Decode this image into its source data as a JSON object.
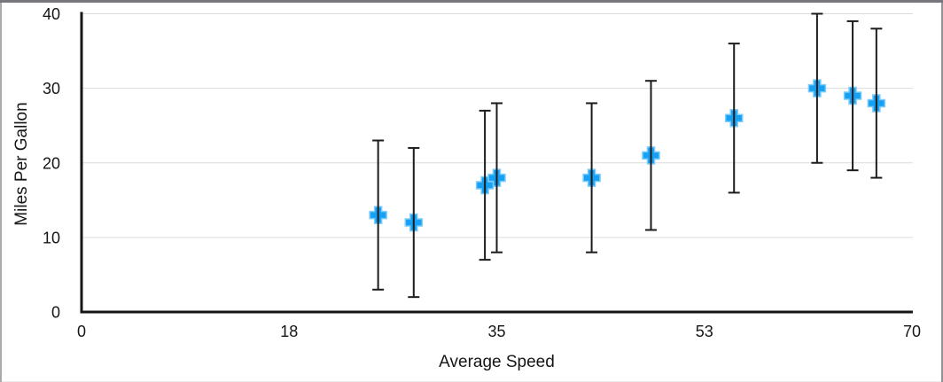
{
  "chart_data": {
    "type": "scatter",
    "title": "",
    "xlabel": "Average Speed",
    "ylabel": "Miles Per Gallon",
    "xlim": [
      0,
      70
    ],
    "ylim": [
      0,
      40
    ],
    "grid": "horizontal",
    "legend": "none",
    "x_ticks": [
      {
        "value": 0,
        "label": "0"
      },
      {
        "value": 17.5,
        "label": "18"
      },
      {
        "value": 35,
        "label": "35"
      },
      {
        "value": 52.5,
        "label": "53"
      },
      {
        "value": 70,
        "label": "70"
      }
    ],
    "y_ticks": [
      {
        "value": 0,
        "label": "0"
      },
      {
        "value": 10,
        "label": "10"
      },
      {
        "value": 20,
        "label": "20"
      },
      {
        "value": 30,
        "label": "30"
      },
      {
        "value": 40,
        "label": "40"
      }
    ],
    "colors": {
      "marker": "#16A1F4",
      "marker_edge": "#7CCBF9",
      "error_bar": "#1C1C1C",
      "axis": "#161616",
      "gridline": "#DBDBDB",
      "tick_text": "#161616"
    },
    "series": [
      {
        "name": "Miles Per Gallon",
        "marker": "plus",
        "error_y": {
          "plus": 10,
          "minus": 10
        },
        "points": [
          {
            "x": 25,
            "y": 13
          },
          {
            "x": 28,
            "y": 12
          },
          {
            "x": 34,
            "y": 17
          },
          {
            "x": 35,
            "y": 18
          },
          {
            "x": 43,
            "y": 18
          },
          {
            "x": 48,
            "y": 21
          },
          {
            "x": 55,
            "y": 26
          },
          {
            "x": 62,
            "y": 30
          },
          {
            "x": 65,
            "y": 29
          },
          {
            "x": 67,
            "y": 28
          }
        ]
      }
    ]
  }
}
